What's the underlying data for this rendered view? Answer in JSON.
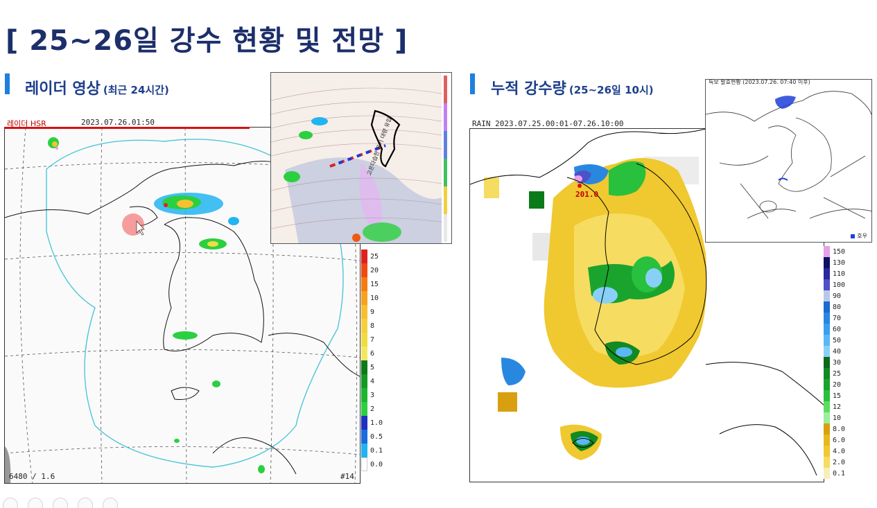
{
  "title": "[ 25~26일 강수 현황 및 전망 ]",
  "left_section": {
    "title": "레이더 영상",
    "subtitle": "(최근 24시간)",
    "map_header_left": "레이더 HSR",
    "map_header_time": "2023.07.26.01:50",
    "footer_left": "648",
    "footer_ratio": "0 / 1.6",
    "footer_right": "#14",
    "legend": [
      {
        "label": "25",
        "color": "#e02020"
      },
      {
        "label": "20",
        "color": "#f04a10"
      },
      {
        "label": "15",
        "color": "#f57a10"
      },
      {
        "label": "10",
        "color": "#f8a020"
      },
      {
        "label": "9",
        "color": "#f8c030"
      },
      {
        "label": "8",
        "color": "#f4d040"
      },
      {
        "label": "7",
        "color": "#f0dc40"
      },
      {
        "label": "6",
        "color": "#f2e860"
      },
      {
        "label": "5",
        "color": "#0a7a1a"
      },
      {
        "label": "4",
        "color": "#129a22"
      },
      {
        "label": "3",
        "color": "#1cb62e"
      },
      {
        "label": "2",
        "color": "#2ad040"
      },
      {
        "label": "1.0",
        "color": "#2030c0"
      },
      {
        "label": "0.5",
        "color": "#1a6ae0"
      },
      {
        "label": "0.1",
        "color": "#22b4f0"
      },
      {
        "label": "0.0",
        "color": "#ffffff"
      }
    ],
    "inset_annotation": "고온다습한 공기 대량 유입"
  },
  "right_section": {
    "title": "누적 강수량",
    "subtitle": "(25~26일 10시)",
    "map_header": "RAIN  2023.07.25.00:01-07.26.10:00",
    "max_value": "201.0",
    "legend": [
      {
        "label": "150",
        "color": "#e8a0e8"
      },
      {
        "label": "130",
        "color": "#101060"
      },
      {
        "label": "110",
        "color": "#2828a0"
      },
      {
        "label": "100",
        "color": "#5050c8"
      },
      {
        "label": "90",
        "color": "#b8c8e8"
      },
      {
        "label": "80",
        "color": "#1a6ad0"
      },
      {
        "label": "70",
        "color": "#2888e0"
      },
      {
        "label": "60",
        "color": "#38a0ee"
      },
      {
        "label": "50",
        "color": "#5ab8f4"
      },
      {
        "label": "40",
        "color": "#88d0f8"
      },
      {
        "label": "30",
        "color": "#0a6a18"
      },
      {
        "label": "25",
        "color": "#128a22"
      },
      {
        "label": "20",
        "color": "#1aa42e"
      },
      {
        "label": "15",
        "color": "#28c03c"
      },
      {
        "label": "12",
        "color": "#5ade60"
      },
      {
        "label": "10",
        "color": "#9aeea0"
      },
      {
        "label": "8.0",
        "color": "#d8a010"
      },
      {
        "label": "6.0",
        "color": "#e8b820"
      },
      {
        "label": "4.0",
        "color": "#f0c830"
      },
      {
        "label": "2.0",
        "color": "#f6dc60"
      },
      {
        "label": "0.1",
        "color": "#f8eebc"
      }
    ],
    "inset_title": "특보 발효현황 (2023.07.26. 07:40 이후)",
    "inset_legend": "호우"
  }
}
